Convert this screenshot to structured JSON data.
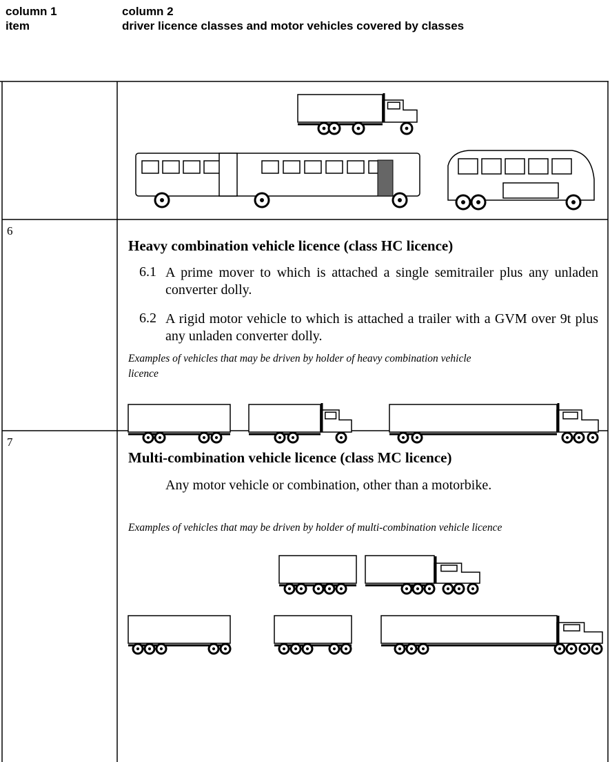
{
  "header": {
    "column_1": [
      "column 1",
      "item"
    ],
    "column_2": [
      "column 2",
      "driver licence classes and motor vehicles covered by classes"
    ]
  },
  "rows": [
    {
      "item": "6",
      "heading": "Heavy combination vehicle licence (class HC licence)",
      "clauses": [
        {
          "number": "6.1",
          "text": "A prime mover to which is attached a single semitrailer plus any unladen converter dolly."
        },
        {
          "number": "6.2",
          "text": "A rigid motor vehicle to which is attached a trailer with a GVM over 9t plus any unladen converter dolly."
        }
      ],
      "examples_caption": "Examples of vehicles that may be driven by holder of heavy combination vehicle licence"
    },
    {
      "item": "7",
      "heading": "Multi-combination vehicle licence (class MC licence)",
      "clauses": [
        {
          "text": "Any motor vehicle or combination, other than a motorbike."
        }
      ],
      "examples_caption": "Examples of vehicles that may be driven by holder of multi-combination vehicle licence"
    }
  ]
}
